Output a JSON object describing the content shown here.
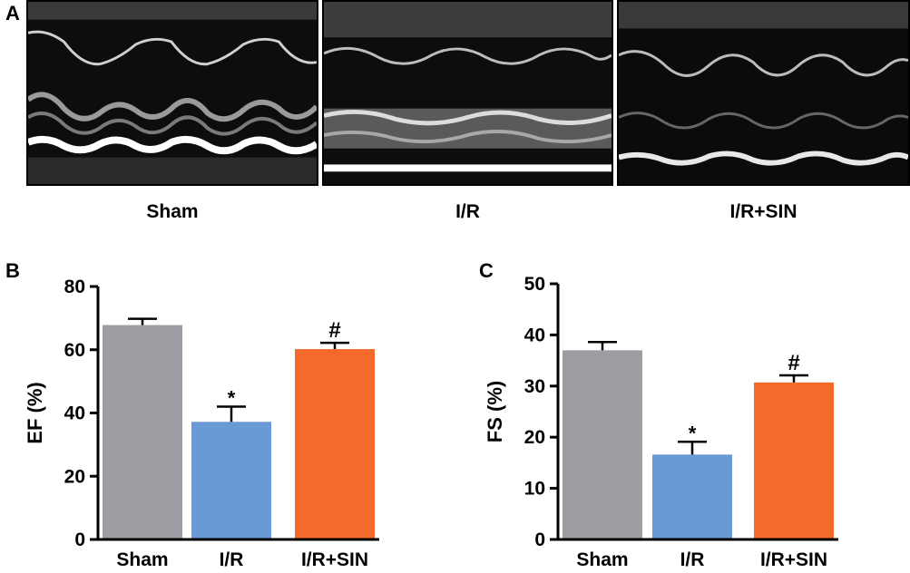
{
  "panels": {
    "a_letter": "A",
    "b_letter": "B",
    "c_letter": "C"
  },
  "echo_images": [
    {
      "label": "Sham"
    },
    {
      "label": "I/R"
    },
    {
      "label": "I/R+SIN"
    }
  ],
  "colors": {
    "sham": "#9d9ea3",
    "ir": "#6a9ad6",
    "ir_sin": "#f36a2b",
    "axis": "#000000"
  },
  "chart_data": [
    {
      "type": "bar",
      "title": "",
      "ylabel": "EF (%)",
      "xlabel": "",
      "categories": [
        "Sham",
        "I/R",
        "I/R+SIN"
      ],
      "values": [
        67.8,
        37.2,
        60.2
      ],
      "errors": [
        2.0,
        4.8,
        2.0
      ],
      "annotations": [
        "",
        "*",
        "#"
      ],
      "ylim": [
        0,
        80
      ],
      "yticks": [
        0,
        20,
        40,
        60,
        80
      ],
      "grid": false,
      "legend": "none"
    },
    {
      "type": "bar",
      "title": "",
      "ylabel": "FS (%)",
      "xlabel": "",
      "categories": [
        "Sham",
        "I/R",
        "I/R+SIN"
      ],
      "values": [
        37.0,
        16.6,
        30.7
      ],
      "errors": [
        1.6,
        2.5,
        1.4
      ],
      "annotations": [
        "",
        "*",
        "#"
      ],
      "ylim": [
        0,
        50
      ],
      "yticks": [
        0,
        10,
        20,
        30,
        40,
        50
      ],
      "grid": false,
      "legend": "none"
    }
  ]
}
